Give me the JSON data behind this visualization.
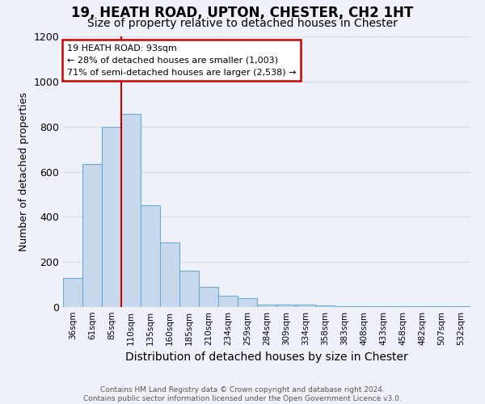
{
  "title1": "19, HEATH ROAD, UPTON, CHESTER, CH2 1HT",
  "title2": "Size of property relative to detached houses in Chester",
  "xlabel": "Distribution of detached houses by size in Chester",
  "ylabel": "Number of detached properties",
  "categories": [
    "36sqm",
    "61sqm",
    "85sqm",
    "110sqm",
    "135sqm",
    "160sqm",
    "185sqm",
    "210sqm",
    "234sqm",
    "259sqm",
    "284sqm",
    "309sqm",
    "334sqm",
    "358sqm",
    "383sqm",
    "408sqm",
    "433sqm",
    "458sqm",
    "482sqm",
    "507sqm",
    "532sqm"
  ],
  "values": [
    130,
    635,
    800,
    855,
    450,
    285,
    160,
    90,
    50,
    40,
    10,
    10,
    10,
    8,
    5,
    5,
    5,
    5,
    5,
    5,
    5
  ],
  "bar_color": "#c8d9ee",
  "bar_edge_color": "#6aaad4",
  "red_line_x": 2.5,
  "annotation_text": "19 HEATH ROAD: 93sqm\n← 28% of detached houses are smaller (1,003)\n71% of semi-detached houses are larger (2,538) →",
  "annotation_box_color": "#ffffff",
  "annotation_box_edge": "#cc0000",
  "ylim": [
    0,
    1200
  ],
  "yticks": [
    0,
    200,
    400,
    600,
    800,
    1000,
    1200
  ],
  "footer": "Contains HM Land Registry data © Crown copyright and database right 2024.\nContains public sector information licensed under the Open Government Licence v3.0.",
  "bg_color": "#eef2f8",
  "grid_color": "#d8dde8",
  "title1_fontsize": 12,
  "title2_fontsize": 10
}
